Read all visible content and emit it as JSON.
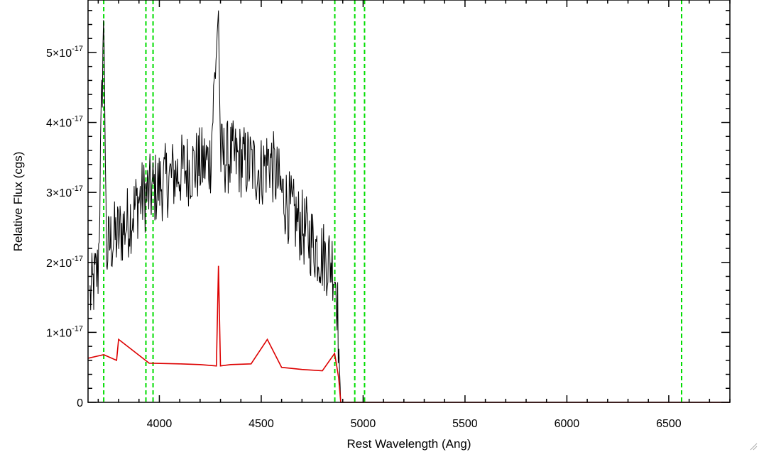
{
  "chart_data": {
    "type": "line",
    "title": "",
    "xlabel": "Rest Wavelength (Ang)",
    "ylabel": "Relative Flux (cgs)",
    "xlim": [
      3650,
      6800
    ],
    "ylim": [
      0,
      5.75e-17
    ],
    "x_ticks": [
      4000,
      4500,
      5000,
      5500,
      6000,
      6500
    ],
    "x_tick_labels": [
      "4000",
      "4500",
      "5000",
      "5500",
      "6000",
      "6500"
    ],
    "y_ticks": [
      0,
      1e-17,
      2e-17,
      3e-17,
      4e-17,
      5e-17
    ],
    "y_tick_labels": [
      {
        "mantissa": "0",
        "exponent": ""
      },
      {
        "mantissa": "1×10",
        "exponent": "-17"
      },
      {
        "mantissa": "2×10",
        "exponent": "-17"
      },
      {
        "mantissa": "3×10",
        "exponent": "-17"
      },
      {
        "mantissa": "4×10",
        "exponent": "-17"
      },
      {
        "mantissa": "5×10",
        "exponent": "-17"
      }
    ],
    "grid": false,
    "series": [
      {
        "color": "#000000",
        "style": "noisy",
        "x": [
          3660,
          3700,
          3727,
          3740,
          3760,
          3800,
          3850,
          3900,
          3950,
          4000,
          4050,
          4100,
          4150,
          4200,
          4250,
          4290,
          4300,
          4350,
          4400,
          4450,
          4500,
          4540,
          4600,
          4650,
          4700,
          4750,
          4800,
          4850,
          4870,
          4890
        ],
        "y": [
          1.5e-17,
          1.9e-17,
          5.6e-17,
          2.1e-17,
          2.3e-17,
          2.4e-17,
          2.6e-17,
          2.9e-17,
          3e-17,
          3.1e-17,
          3.2e-17,
          3.3e-17,
          3.35e-17,
          3.4e-17,
          3.45e-17,
          5.6e-17,
          3.5e-17,
          3.5e-17,
          3.45e-17,
          3.4e-17,
          3.3e-17,
          3.5e-17,
          3e-17,
          2.7e-17,
          2.5e-17,
          2.3e-17,
          2.1e-17,
          2e-17,
          1.7e-17,
          0
        ]
      },
      {
        "color": "#dd0000",
        "style": "smooth",
        "x": [
          3650,
          3727,
          3790,
          3800,
          3950,
          4100,
          4200,
          4280,
          4290,
          4300,
          4350,
          4450,
          4530,
          4600,
          4700,
          4800,
          4860,
          4880,
          4890,
          4900,
          6800
        ],
        "y": [
          6.3e-18,
          6.8e-18,
          6e-18,
          9e-18,
          5.6e-18,
          5.5e-18,
          5.4e-18,
          5.2e-18,
          1.95e-17,
          5.2e-18,
          5.4e-18,
          5.5e-18,
          9e-18,
          5e-18,
          4.7e-18,
          4.5e-18,
          7e-18,
          3.5e-18,
          0,
          0,
          0
        ]
      }
    ],
    "reference_lines": {
      "color": "#00dd00",
      "x": [
        3727,
        3934,
        3969,
        4861,
        4959,
        5007,
        6563
      ]
    }
  }
}
